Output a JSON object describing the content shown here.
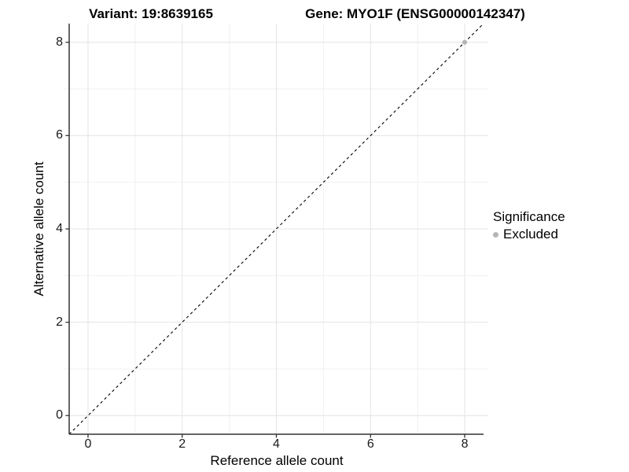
{
  "chart_data": {
    "type": "scatter",
    "title_left": "Variant: 19:8639165",
    "title_right": "Gene: MYO1F (ENSG00000142347)",
    "xlabel": "Reference allele count",
    "ylabel": "Alternative allele count",
    "xlim": [
      -0.4,
      8.4
    ],
    "ylim": [
      -0.4,
      8.4
    ],
    "x_ticks": [
      0,
      2,
      4,
      6,
      8
    ],
    "y_ticks": [
      0,
      2,
      4,
      6,
      8
    ],
    "grid": {
      "major": true,
      "minor": true,
      "major_color": "#e4e4e4",
      "minor_color": "#f0f0f0"
    },
    "axis_line_color": "#333333",
    "identity_line": {
      "equation": "y = x",
      "style": "dashed",
      "color": "#000000"
    },
    "series": [
      {
        "name": "Excluded",
        "color": "#b5b5b5",
        "points": [
          {
            "x": 8,
            "y": 8
          }
        ]
      }
    ],
    "legend": {
      "title": "Significance",
      "position": "right",
      "items": [
        {
          "label": "Excluded",
          "color": "#b5b5b5"
        }
      ]
    }
  }
}
